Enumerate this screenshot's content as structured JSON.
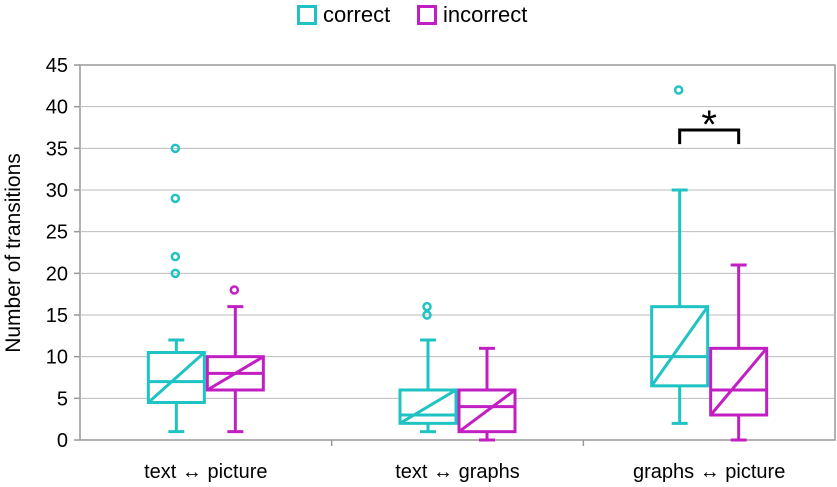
{
  "chart_data": {
    "type": "box",
    "categories": [
      "text ↔ picture",
      "text ↔ graphs",
      "graphs ↔ picture"
    ],
    "ylabel": "Number of transitions",
    "ylim": [
      0,
      45
    ],
    "yticks": [
      0,
      5,
      10,
      15,
      20,
      25,
      30,
      35,
      40,
      45
    ],
    "grid": true,
    "legend_position": "top-center",
    "series": [
      {
        "name": "correct",
        "color": "#1fc3c3",
        "boxes": [
          {
            "min": 1,
            "q1": 4.5,
            "median": 7,
            "q3": 10.5,
            "max": 12,
            "outliers": [
              20,
              22,
              29,
              35
            ]
          },
          {
            "min": 1,
            "q1": 2,
            "median": 3,
            "q3": 6,
            "max": 12,
            "outliers": [
              15,
              16
            ]
          },
          {
            "min": 2,
            "q1": 6.5,
            "median": 10,
            "q3": 16,
            "max": 30,
            "outliers": [
              42
            ]
          }
        ]
      },
      {
        "name": "incorrect",
        "color": "#c21fc3",
        "boxes": [
          {
            "min": 1,
            "q1": 6,
            "median": 8,
            "q3": 10,
            "max": 16,
            "outliers": [
              18
            ]
          },
          {
            "min": 0,
            "q1": 1,
            "median": 4,
            "q3": 6,
            "max": 11,
            "outliers": []
          },
          {
            "min": 0,
            "q1": 3,
            "median": 6,
            "q3": 11,
            "max": 21,
            "outliers": []
          }
        ]
      }
    ],
    "annotations": [
      {
        "text": "*",
        "category_index": 2
      }
    ]
  }
}
